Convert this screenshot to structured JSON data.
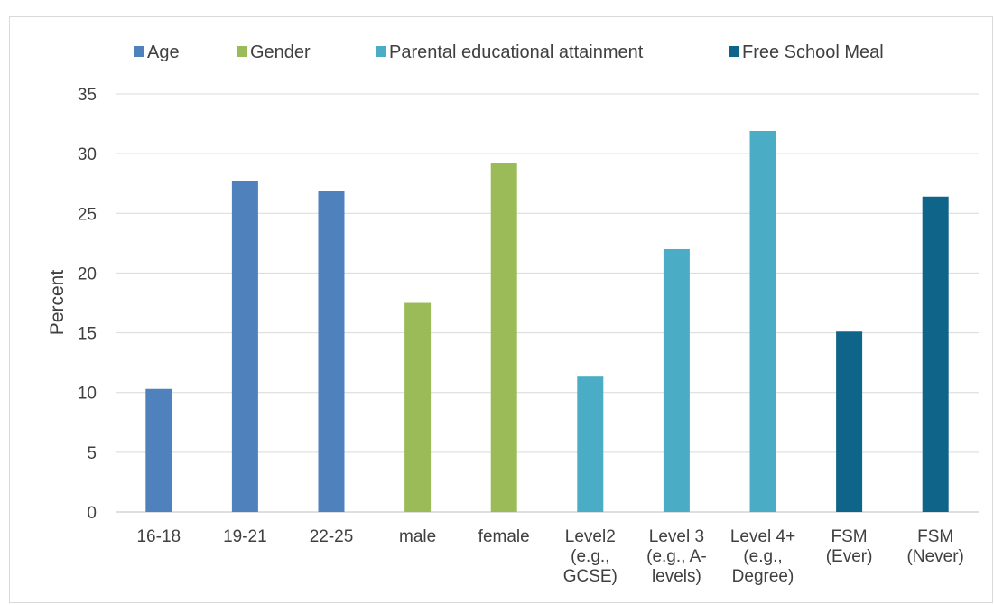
{
  "chart_data": {
    "type": "bar",
    "title": "",
    "xlabel": "",
    "ylabel": "Percent",
    "ylim": [
      0,
      35
    ],
    "yticks": [
      0,
      5,
      10,
      15,
      20,
      25,
      30,
      35
    ],
    "grid": true,
    "legend_position": "top",
    "categories": [
      [
        "16-18"
      ],
      [
        "19-21"
      ],
      [
        "22-25"
      ],
      [
        "male"
      ],
      [
        "female"
      ],
      [
        "Level2",
        "(e.g.,",
        "GCSE)"
      ],
      [
        "Level 3",
        "(e.g., A-",
        "levels)"
      ],
      [
        "Level 4+",
        "(e.g.,",
        "Degree)"
      ],
      [
        "FSM",
        "(Ever)"
      ],
      [
        "FSM",
        "(Never)"
      ]
    ],
    "series": [
      {
        "name": "Age",
        "color": "#4f81bd",
        "values": [
          10.3,
          27.7,
          26.9,
          null,
          null,
          null,
          null,
          null,
          null,
          null
        ]
      },
      {
        "name": "Gender",
        "color": "#9bbb59",
        "values": [
          null,
          null,
          null,
          17.5,
          29.2,
          null,
          null,
          null,
          null,
          null
        ]
      },
      {
        "name": "Parental educational attainment",
        "color": "#4bacc6",
        "values": [
          null,
          null,
          null,
          null,
          null,
          11.4,
          22.0,
          31.9,
          null,
          null
        ]
      },
      {
        "name": "Free School Meal",
        "color": "#0f6489",
        "values": [
          null,
          null,
          null,
          null,
          null,
          null,
          null,
          null,
          15.1,
          26.4
        ]
      }
    ]
  }
}
